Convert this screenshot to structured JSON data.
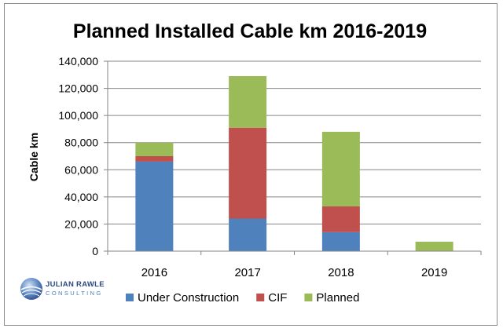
{
  "chart_data": {
    "type": "bar",
    "stacked": true,
    "title": "Planned Installed Cable km 2016-2019",
    "xlabel": "",
    "ylabel": "Cable km",
    "categories": [
      "2016",
      "2017",
      "2018",
      "2019"
    ],
    "series": [
      {
        "name": "Under Construction",
        "color": "#4f81bd",
        "values": [
          66000,
          24000,
          14000,
          0
        ]
      },
      {
        "name": "CIF",
        "color": "#c0504d",
        "values": [
          4000,
          67000,
          19000,
          0
        ]
      },
      {
        "name": "Planned",
        "color": "#9bbb59",
        "values": [
          10000,
          38000,
          55000,
          7000
        ]
      }
    ],
    "ylim": [
      0,
      140000
    ],
    "yticks": [
      0,
      20000,
      40000,
      60000,
      80000,
      100000,
      120000,
      140000
    ],
    "ytick_labels": [
      "0",
      "20,000",
      "40,000",
      "60,000",
      "80,000",
      "100,000",
      "120,000",
      "140,000"
    ],
    "grid": true,
    "legend_position": "bottom"
  },
  "logo": {
    "line1": "JULIAN RAWLE",
    "line2": "CONSULTING"
  }
}
